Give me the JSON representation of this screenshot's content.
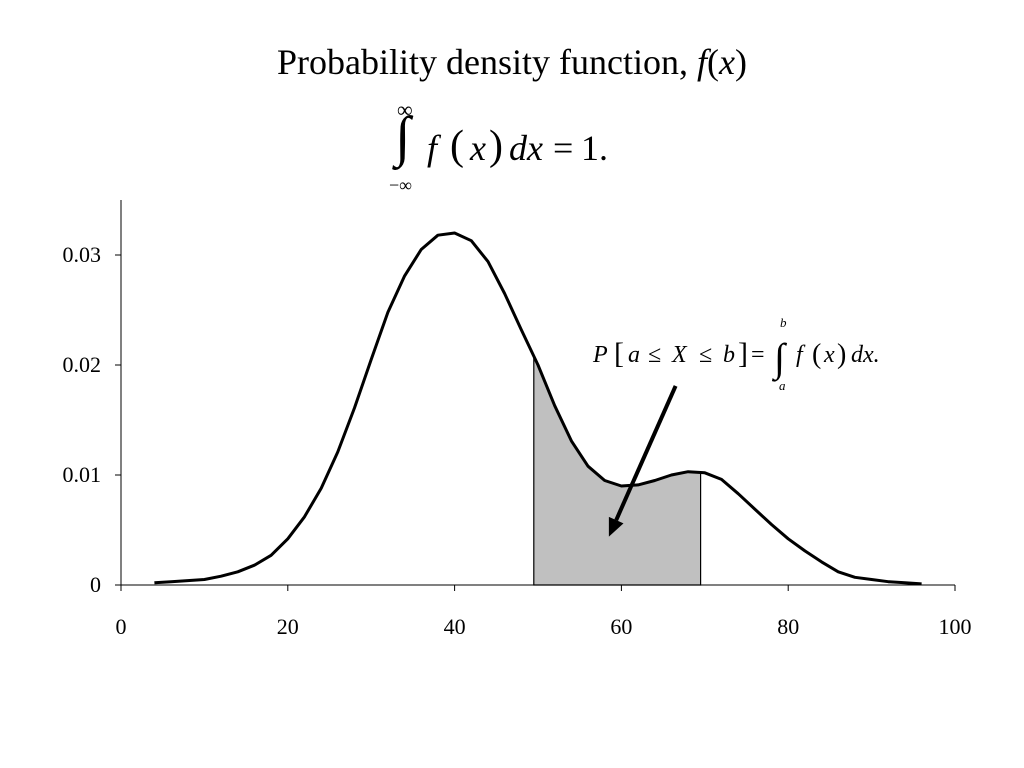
{
  "slide": {
    "title_text": "Probability density function, ",
    "title_fx_f": "f",
    "title_fx_open": "(",
    "title_fx_x": "x",
    "title_fx_close": ")",
    "normalization": {
      "upper_limit": "∞",
      "lower_limit": "−∞",
      "integrand_f": "f",
      "integrand_x": "x",
      "differential": "dx",
      "equals": "=",
      "value": "1."
    }
  },
  "annotation": {
    "lhs": "P",
    "a": "a",
    "le1": "≤",
    "X": "X",
    "le2": "≤",
    "b": "b",
    "equals": "=",
    "upper_limit": "b",
    "lower_limit": "a",
    "integrand_f": "f",
    "integrand_x": "x",
    "differential": "dx."
  },
  "chart_data": {
    "type": "area",
    "title": "",
    "xlabel": "",
    "ylabel": "",
    "xlim": [
      0,
      100
    ],
    "ylim": [
      0,
      0.035
    ],
    "x_ticks": [
      "0",
      "20",
      "40",
      "60",
      "80",
      "100"
    ],
    "x_tick_values": [
      0,
      20,
      40,
      60,
      80,
      100
    ],
    "y_ticks": [
      "0",
      "0.01",
      "0.02",
      "0.03"
    ],
    "y_tick_values": [
      0,
      0.01,
      0.02,
      0.03
    ],
    "grid": false,
    "series": [
      {
        "x": [
          4,
          6,
          8,
          10,
          12,
          14,
          16,
          18,
          20,
          22,
          24,
          26,
          28,
          30,
          32,
          34,
          36,
          38,
          40,
          42,
          44,
          46,
          48,
          50,
          52,
          54,
          56,
          58,
          60,
          62,
          64,
          66,
          68,
          70,
          72,
          74,
          76,
          78,
          80,
          82,
          84,
          86,
          88,
          90,
          92,
          94,
          96
        ],
        "y": [
          0.0002,
          0.0003,
          0.0004,
          0.0005,
          0.0008,
          0.0012,
          0.0018,
          0.0027,
          0.0042,
          0.0062,
          0.0088,
          0.0121,
          0.0161,
          0.0205,
          0.0248,
          0.0281,
          0.0305,
          0.0318,
          0.032,
          0.0313,
          0.0294,
          0.0265,
          0.0232,
          0.02,
          0.0163,
          0.0131,
          0.0108,
          0.0095,
          0.009,
          0.0091,
          0.0095,
          0.01,
          0.0103,
          0.0102,
          0.0096,
          0.0083,
          0.0069,
          0.0055,
          0.0042,
          0.0031,
          0.0021,
          0.0012,
          0.0007,
          0.0005,
          0.0003,
          0.0002,
          0.0001
        ]
      }
    ],
    "shaded_region": {
      "from": 49.5,
      "to": 69.5
    },
    "shade_color": "#c0c0c0",
    "line_color": "#000000",
    "arrow": {
      "from": [
        66.5,
        0.0181
      ],
      "to": [
        58.5,
        0.0044
      ]
    }
  }
}
